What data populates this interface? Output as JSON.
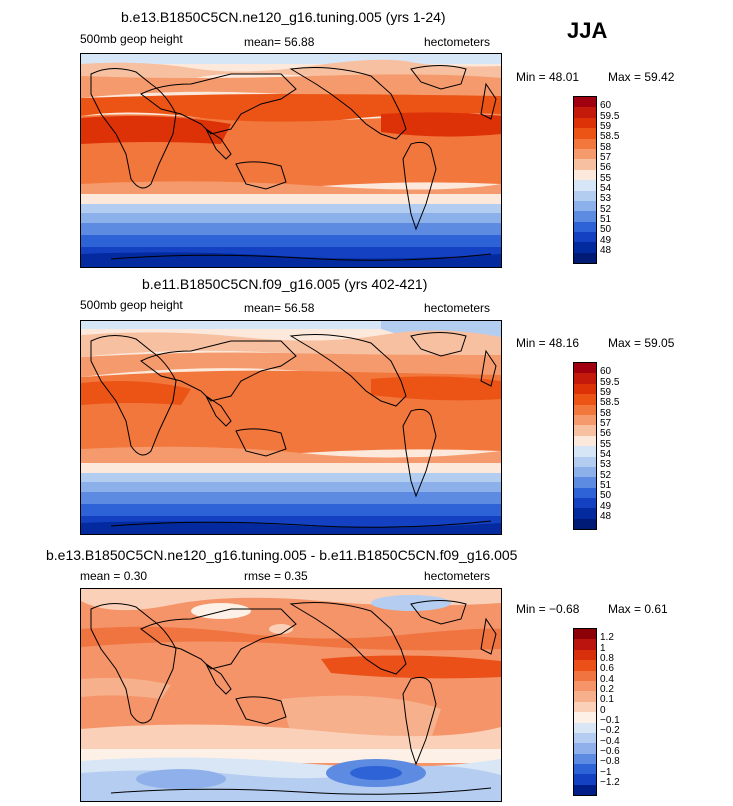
{
  "season": "JJA",
  "panels": [
    {
      "title": "b.e13.B1850C5CN.ne120_g16.tuning.005 (yrs 1-24)",
      "left_label": "500mb geop height",
      "center_label": "mean=  56.88",
      "units": "hectometers",
      "min_label": "Min =  48.01",
      "max_label": "Max =  59.42",
      "levels": [
        "60",
        "59.5",
        "59",
        "58.5",
        "58",
        "57",
        "56",
        "55",
        "54",
        "53",
        "52",
        "51",
        "50",
        "49",
        "48"
      ],
      "colors": [
        "#a00010",
        "#c41a0c",
        "#dd3208",
        "#ec5416",
        "#f2773c",
        "#f59a6c",
        "#f7c0a0",
        "#fde9dc",
        "#d6e6f6",
        "#b2cdf0",
        "#8cb1ea",
        "#5d8be2",
        "#2e63d7",
        "#1440c2",
        "#032a9e",
        "#001b76"
      ]
    },
    {
      "title": "b.e11.B1850C5CN.f09_g16.005 (yrs 402-421)",
      "left_label": "500mb geop height",
      "center_label": "mean=  56.58",
      "units": "hectometers",
      "min_label": "Min =  48.16",
      "max_label": "Max =  59.05",
      "levels": [
        "60",
        "59.5",
        "59",
        "58.5",
        "58",
        "57",
        "56",
        "55",
        "54",
        "53",
        "52",
        "51",
        "50",
        "49",
        "48"
      ],
      "colors": [
        "#a00010",
        "#c41a0c",
        "#dd3208",
        "#ec5416",
        "#f2773c",
        "#f59a6c",
        "#f7c0a0",
        "#fde9dc",
        "#d6e6f6",
        "#b2cdf0",
        "#8cb1ea",
        "#5d8be2",
        "#2e63d7",
        "#1440c2",
        "#032a9e",
        "#001b76"
      ]
    },
    {
      "title": "b.e13.B1850C5CN.ne120_g16.tuning.005 - b.e11.B1850C5CN.f09_g16.005",
      "left_label": "mean =   0.30",
      "center_label": "rmse =   0.35",
      "units": "hectometers",
      "min_label": "Min = −0.68",
      "max_label": "Max =   0.61",
      "levels": [
        "1.2",
        "1",
        "0.8",
        "0.6",
        "0.4",
        "0.2",
        "0.1",
        "0",
        "−0.1",
        "−0.2",
        "−0.4",
        "−0.6",
        "−0.8",
        "−1",
        "−1.2"
      ],
      "colors": [
        "#8c0008",
        "#bb140e",
        "#d9300c",
        "#ea5018",
        "#f07440",
        "#f49468",
        "#f7b08c",
        "#fbd0b8",
        "#fdf0e6",
        "#d8e6f6",
        "#b4cdf0",
        "#8fb0ea",
        "#5d8be2",
        "#2e63d7",
        "#1440c2",
        "#001e88"
      ]
    }
  ]
}
